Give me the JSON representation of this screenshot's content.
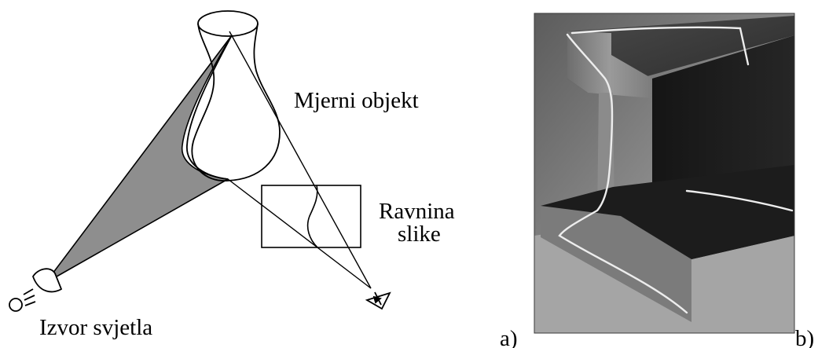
{
  "labels": {
    "object": "Mjerni objekt",
    "image_plane_line1": "Ravnina",
    "image_plane_line2": "slike",
    "light_source": "Izvor svjetla"
  },
  "panels": {
    "a": "a)",
    "b": "b)"
  },
  "colors": {
    "shadow_fill": "#8e8e8e",
    "line": "#000000",
    "laser_line": "#ededed"
  },
  "icons": {
    "light_source": "lamp-icon",
    "camera": "eye-icon"
  }
}
